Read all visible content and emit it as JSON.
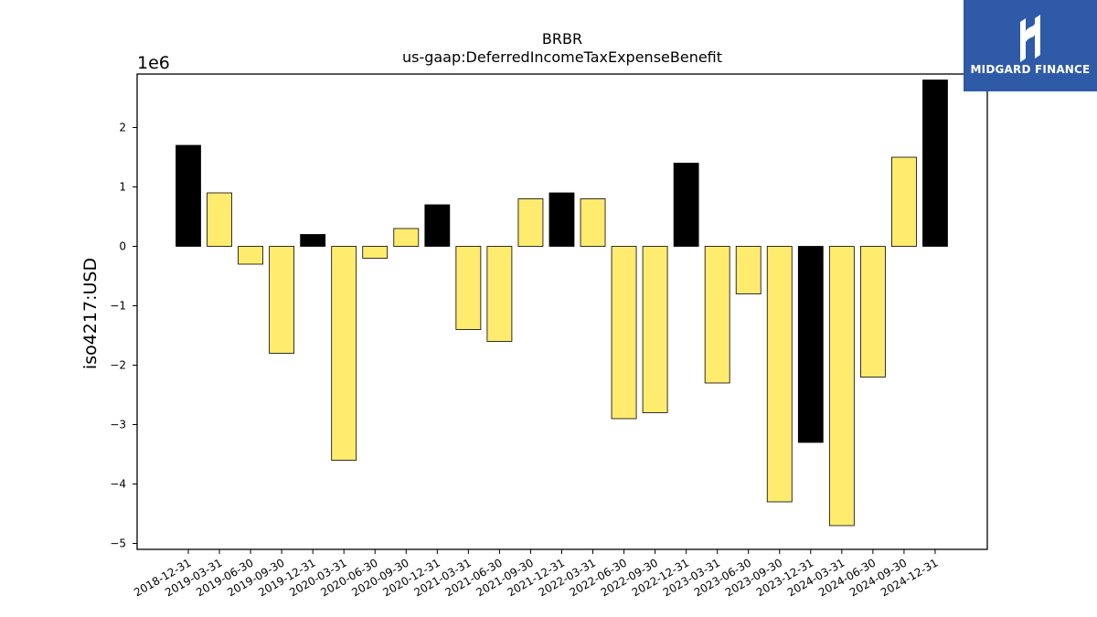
{
  "chart_data": {
    "type": "bar",
    "title": "BRBR",
    "subtitle": "us-gaap:DeferredIncomeTaxExpenseBenefit",
    "xlabel": "",
    "ylabel": "iso4217:USD",
    "y_multiplier_label": "1e6",
    "ylim": [
      -5.1,
      2.9
    ],
    "yticks": [
      2,
      1,
      0,
      -1,
      -2,
      -3,
      -4,
      -5
    ],
    "ytick_labels": [
      "2",
      "1",
      "0",
      "−1",
      "−2",
      "−3",
      "−4",
      "−5"
    ],
    "grid": false,
    "categories": [
      "2018-12-31",
      "2019-03-31",
      "2019-06-30",
      "2019-09-30",
      "2019-12-31",
      "2020-03-31",
      "2020-06-30",
      "2020-09-30",
      "2020-12-31",
      "2021-03-31",
      "2021-06-30",
      "2021-09-30",
      "2021-12-31",
      "2022-03-31",
      "2022-06-30",
      "2022-09-30",
      "2022-12-31",
      "2023-03-31",
      "2023-06-30",
      "2023-09-30",
      "2023-12-31",
      "2024-03-31",
      "2024-06-30",
      "2024-09-30",
      "2024-12-31"
    ],
    "values": [
      1.7,
      0.9,
      -0.3,
      -1.8,
      0.2,
      -3.6,
      -0.2,
      0.3,
      0.7,
      -1.4,
      -1.6,
      0.8,
      0.9,
      0.8,
      -2.9,
      -2.8,
      1.4,
      -2.3,
      -0.8,
      -4.3,
      -3.3,
      -4.7,
      -2.2,
      1.5,
      2.8
    ],
    "quarter_end_color": "#000000",
    "quarter_color": "#ffeb6e",
    "bar_edge_color": "#000000",
    "fiscal_year_end_mask": [
      true,
      false,
      false,
      false,
      true,
      false,
      false,
      false,
      true,
      false,
      false,
      false,
      true,
      false,
      false,
      false,
      true,
      false,
      false,
      false,
      true,
      false,
      false,
      false,
      true
    ]
  },
  "logo": {
    "text": "MIDGARD FINANCE",
    "background": "#2f5aa8"
  }
}
